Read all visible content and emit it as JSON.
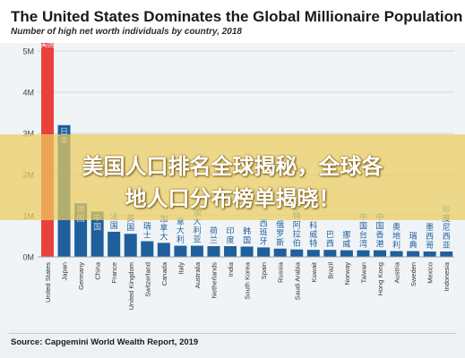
{
  "header": {
    "title": "The United States Dominates the Global Millionaire Population",
    "subtitle": "Number of high net worth individuals by country, 2018"
  },
  "footer": {
    "source": "Source: Capgemini World Wealth Report, 2019"
  },
  "banner": {
    "line1": "美国人口排名全球揭秘，全球各",
    "line2": "地人口分布榜单揭晓！"
  },
  "colors": {
    "highlight_bar": "#e8413c",
    "bar": "#1f5f9c",
    "chart_background": "#f1f4f6",
    "banner": "#ecce5f"
  },
  "chart_data": {
    "type": "bar",
    "title": "The United States Dominates the Global Millionaire Population",
    "subtitle": "Number of high net worth individuals by country, 2018",
    "xlabel": "",
    "ylabel": "",
    "ylim": [
      0,
      5500000
    ],
    "y_ticks": [
      0,
      1000000,
      2000000,
      3000000,
      4000000,
      5000000
    ],
    "y_tick_labels": [
      "0M",
      "1M",
      "2M",
      "3M",
      "4M",
      "5M"
    ],
    "grid": true,
    "categories": [
      "United States",
      "Japan",
      "Germany",
      "China",
      "France",
      "United Kingdom",
      "Switzerland",
      "Canada",
      "Italy",
      "Australia",
      "Netherlands",
      "India",
      "South Korea",
      "Spain",
      "Russia",
      "Saudi Arabia",
      "Kuwait",
      "Brazil",
      "Norway",
      "Taiwan",
      "Hong Kong",
      "Austria",
      "Sweden",
      "Mexico",
      "Indonesia"
    ],
    "values": [
      5300000,
      3200000,
      1300000,
      1100000,
      610000,
      560000,
      380000,
      340000,
      270000,
      270000,
      260000,
      260000,
      250000,
      230000,
      200000,
      180000,
      170000,
      170000,
      160000,
      160000,
      160000,
      140000,
      140000,
      130000,
      130000
    ],
    "bar_labels": [
      "美国",
      "日本",
      "德国",
      "中国",
      "法国",
      "英国",
      "瑞士",
      "加拿大",
      "意大利",
      "澳大利亚",
      "荷兰",
      "印度",
      "韩国",
      "西班牙",
      "俄罗斯",
      "沙特阿拉伯",
      "科威特",
      "巴西",
      "挪威",
      "中国台湾",
      "中国香港",
      "奥地利",
      "瑞典",
      "墨西哥",
      "印度尼西亚"
    ],
    "highlight_index": 0
  }
}
